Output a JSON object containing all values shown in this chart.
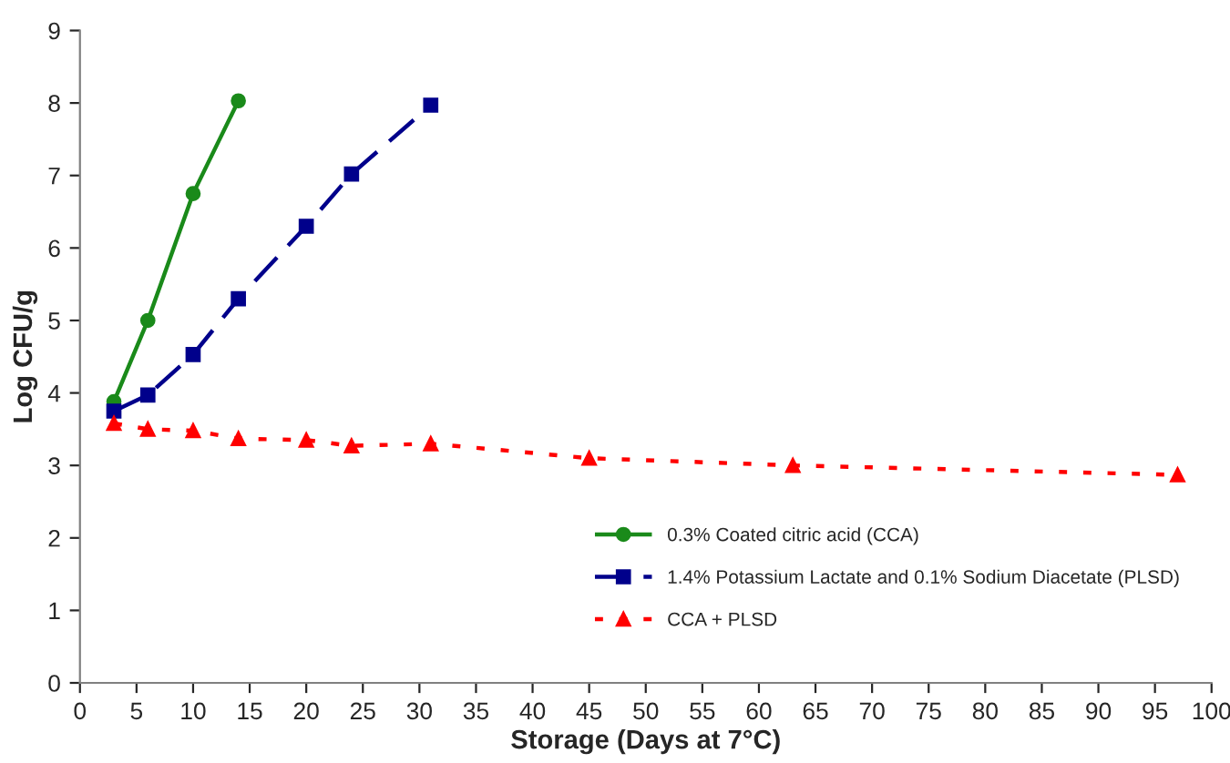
{
  "chart_data": {
    "type": "line",
    "xlabel": "Storage (Days at 7°C)",
    "ylabel": "Log CFU/g",
    "xlim": [
      0,
      100
    ],
    "xticks": [
      0,
      5,
      10,
      15,
      20,
      25,
      30,
      35,
      40,
      45,
      50,
      55,
      60,
      65,
      70,
      75,
      80,
      85,
      90,
      95,
      100
    ],
    "ylim": [
      0,
      9
    ],
    "yticks": [
      0,
      1,
      2,
      3,
      4,
      5,
      6,
      7,
      8,
      9
    ],
    "grid": false,
    "legend": "right",
    "series": [
      {
        "name": "0.3% Coated citric acid (CCA)",
        "color": "#1a8a1a",
        "marker": "circle",
        "line_style": "solid",
        "x": [
          3,
          6,
          10,
          14
        ],
        "values": [
          3.88,
          5.0,
          6.75,
          8.03
        ]
      },
      {
        "name": "1.4% Potassium Lactate and 0.1% Sodium Diacetate (PLSD)",
        "color": "#00008b",
        "marker": "square",
        "line_style": "dashed",
        "x": [
          3,
          6,
          10,
          14,
          20,
          24,
          31
        ],
        "values": [
          3.75,
          3.97,
          4.53,
          5.3,
          6.3,
          7.02,
          7.97
        ]
      },
      {
        "name": "CCA + PLSD",
        "color": "#ff0000",
        "marker": "triangle",
        "line_style": "dotted",
        "x": [
          3,
          6,
          10,
          14,
          20,
          24,
          31,
          45,
          63,
          97
        ],
        "values": [
          3.58,
          3.5,
          3.48,
          3.37,
          3.35,
          3.27,
          3.3,
          3.1,
          3.0,
          2.87
        ]
      }
    ]
  }
}
